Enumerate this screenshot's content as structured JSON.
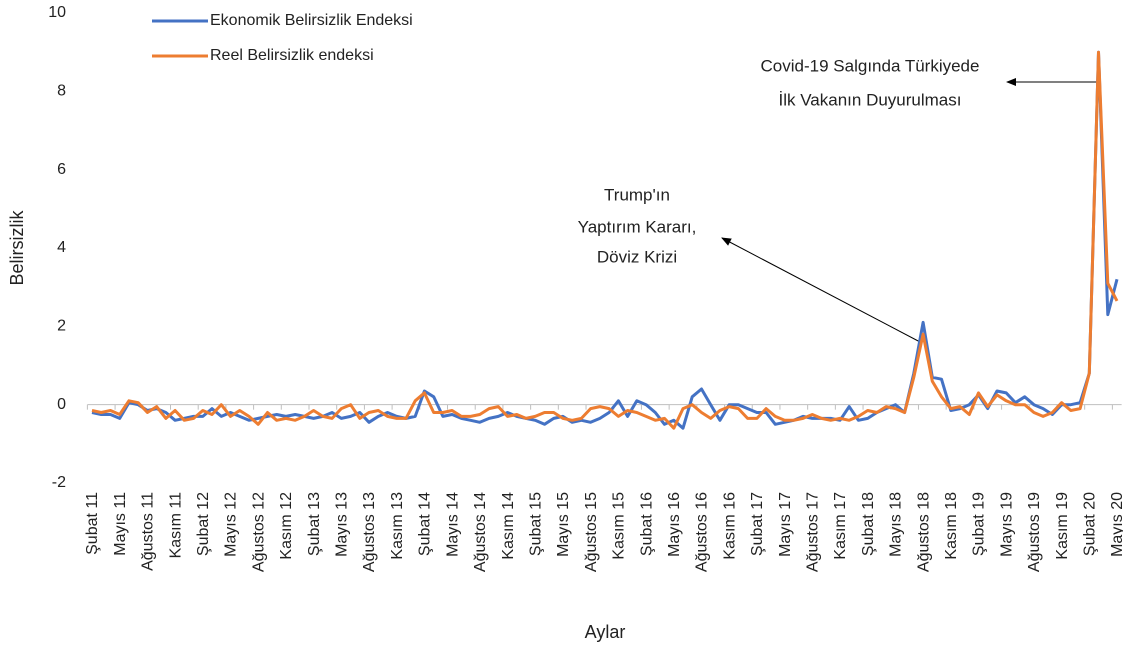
{
  "chart_data": {
    "type": "line",
    "x_label": "Aylar",
    "y_label": "Belirsizlik",
    "categories": [
      "Şubat 11",
      null,
      null,
      "Mayıs 11",
      null,
      null,
      "Ağustos 11",
      null,
      null,
      "Kasım 11",
      null,
      null,
      "Şubat 12",
      null,
      null,
      "Mayıs 12",
      null,
      null,
      "Ağustos 12",
      null,
      null,
      "Kasım 12",
      null,
      null,
      "Şubat 13",
      null,
      null,
      "Mayıs 13",
      null,
      null,
      "Ağustos 13",
      null,
      null,
      "Kasım 13",
      null,
      null,
      "Şubat 14",
      null,
      null,
      "Mayıs 14",
      null,
      null,
      "Ağustos 14",
      null,
      null,
      "Kasım 14",
      null,
      null,
      "Şubat 15",
      null,
      null,
      "Mayıs 15",
      null,
      null,
      "Ağustos 15",
      null,
      null,
      "Kasım 15",
      null,
      null,
      "Şubat 16",
      null,
      null,
      "Mayıs 16",
      null,
      null,
      "Ağustos 16",
      null,
      null,
      "Kasım 16",
      null,
      null,
      "Şubat 17",
      null,
      null,
      "Mayıs 17",
      null,
      null,
      "Ağustos 17",
      null,
      null,
      "Kasım 17",
      null,
      null,
      "Şubat 18",
      null,
      null,
      "Mayıs 18",
      null,
      null,
      "Ağustos 18",
      null,
      null,
      "Kasım 18",
      null,
      null,
      "Şubat 19",
      null,
      null,
      "Mayıs 19",
      null,
      null,
      "Ağustos 19",
      null,
      null,
      "Kasım 19",
      null,
      null,
      "Şubat 20",
      null,
      null,
      "Mayıs 20"
    ],
    "series": [
      {
        "name": "Ekonomik Belirsizlik Endeksi",
        "color": "#4472c4",
        "values": [
          -0.2,
          -0.25,
          -0.25,
          -0.35,
          0.05,
          0.0,
          -0.15,
          -0.1,
          -0.2,
          -0.4,
          -0.35,
          -0.3,
          -0.3,
          -0.1,
          -0.3,
          -0.2,
          -0.3,
          -0.4,
          -0.35,
          -0.3,
          -0.25,
          -0.3,
          -0.25,
          -0.3,
          -0.35,
          -0.3,
          -0.2,
          -0.35,
          -0.3,
          -0.2,
          -0.45,
          -0.3,
          -0.2,
          -0.3,
          -0.35,
          -0.3,
          0.35,
          0.2,
          -0.3,
          -0.25,
          -0.35,
          -0.4,
          -0.45,
          -0.35,
          -0.3,
          -0.2,
          -0.3,
          -0.35,
          -0.4,
          -0.5,
          -0.35,
          -0.3,
          -0.45,
          -0.4,
          -0.45,
          -0.35,
          -0.2,
          0.1,
          -0.3,
          0.1,
          0.0,
          -0.2,
          -0.5,
          -0.4,
          -0.6,
          0.2,
          0.4,
          0.0,
          -0.4,
          0.0,
          0.0,
          -0.1,
          -0.2,
          -0.2,
          -0.5,
          -0.45,
          -0.4,
          -0.3,
          -0.35,
          -0.35,
          -0.35,
          -0.4,
          -0.05,
          -0.4,
          -0.35,
          -0.2,
          -0.1,
          0.0,
          -0.2,
          0.8,
          2.1,
          0.7,
          0.65,
          -0.15,
          -0.1,
          0.0,
          0.25,
          -0.1,
          0.35,
          0.3,
          0.05,
          0.2,
          0.0,
          -0.1,
          -0.25,
          0.0,
          0.0,
          0.05,
          0.8,
          9.0,
          2.3,
          3.2
        ]
      },
      {
        "name": "Reel Belirsizlik endeksi",
        "color": "#ed7d31",
        "values": [
          -0.15,
          -0.2,
          -0.15,
          -0.25,
          0.1,
          0.05,
          -0.2,
          -0.05,
          -0.35,
          -0.15,
          -0.4,
          -0.35,
          -0.15,
          -0.25,
          0.0,
          -0.3,
          -0.15,
          -0.3,
          -0.5,
          -0.2,
          -0.4,
          -0.35,
          -0.4,
          -0.3,
          -0.15,
          -0.3,
          -0.35,
          -0.1,
          0.0,
          -0.35,
          -0.2,
          -0.15,
          -0.3,
          -0.35,
          -0.35,
          0.1,
          0.3,
          -0.2,
          -0.2,
          -0.15,
          -0.3,
          -0.3,
          -0.25,
          -0.1,
          -0.05,
          -0.3,
          -0.25,
          -0.35,
          -0.3,
          -0.2,
          -0.2,
          -0.35,
          -0.4,
          -0.35,
          -0.1,
          -0.05,
          -0.1,
          -0.3,
          -0.15,
          -0.2,
          -0.3,
          -0.4,
          -0.35,
          -0.6,
          -0.1,
          0.0,
          -0.2,
          -0.35,
          -0.15,
          -0.05,
          -0.1,
          -0.35,
          -0.35,
          -0.1,
          -0.3,
          -0.4,
          -0.4,
          -0.35,
          -0.25,
          -0.35,
          -0.4,
          -0.35,
          -0.4,
          -0.3,
          -0.15,
          -0.2,
          -0.05,
          -0.1,
          -0.2,
          0.7,
          1.8,
          0.6,
          0.2,
          -0.1,
          -0.05,
          -0.25,
          0.3,
          -0.05,
          0.25,
          0.1,
          0.0,
          0.0,
          -0.2,
          -0.3,
          -0.2,
          0.05,
          -0.15,
          -0.1,
          0.8,
          9.0,
          3.1,
          2.65
        ]
      }
    ],
    "ylim": [
      -2,
      10
    ],
    "yticks": [
      -2,
      0,
      2,
      4,
      6,
      8,
      10
    ],
    "annotations": [
      {
        "lines": [
          "Trump'ın",
          "Yaptırım Kararı,",
          "Döviz Krizi"
        ]
      },
      {
        "lines": [
          "Covid-19 Salgında Türkiyede",
          "İlk Vakanın Duyurulması"
        ]
      }
    ]
  }
}
